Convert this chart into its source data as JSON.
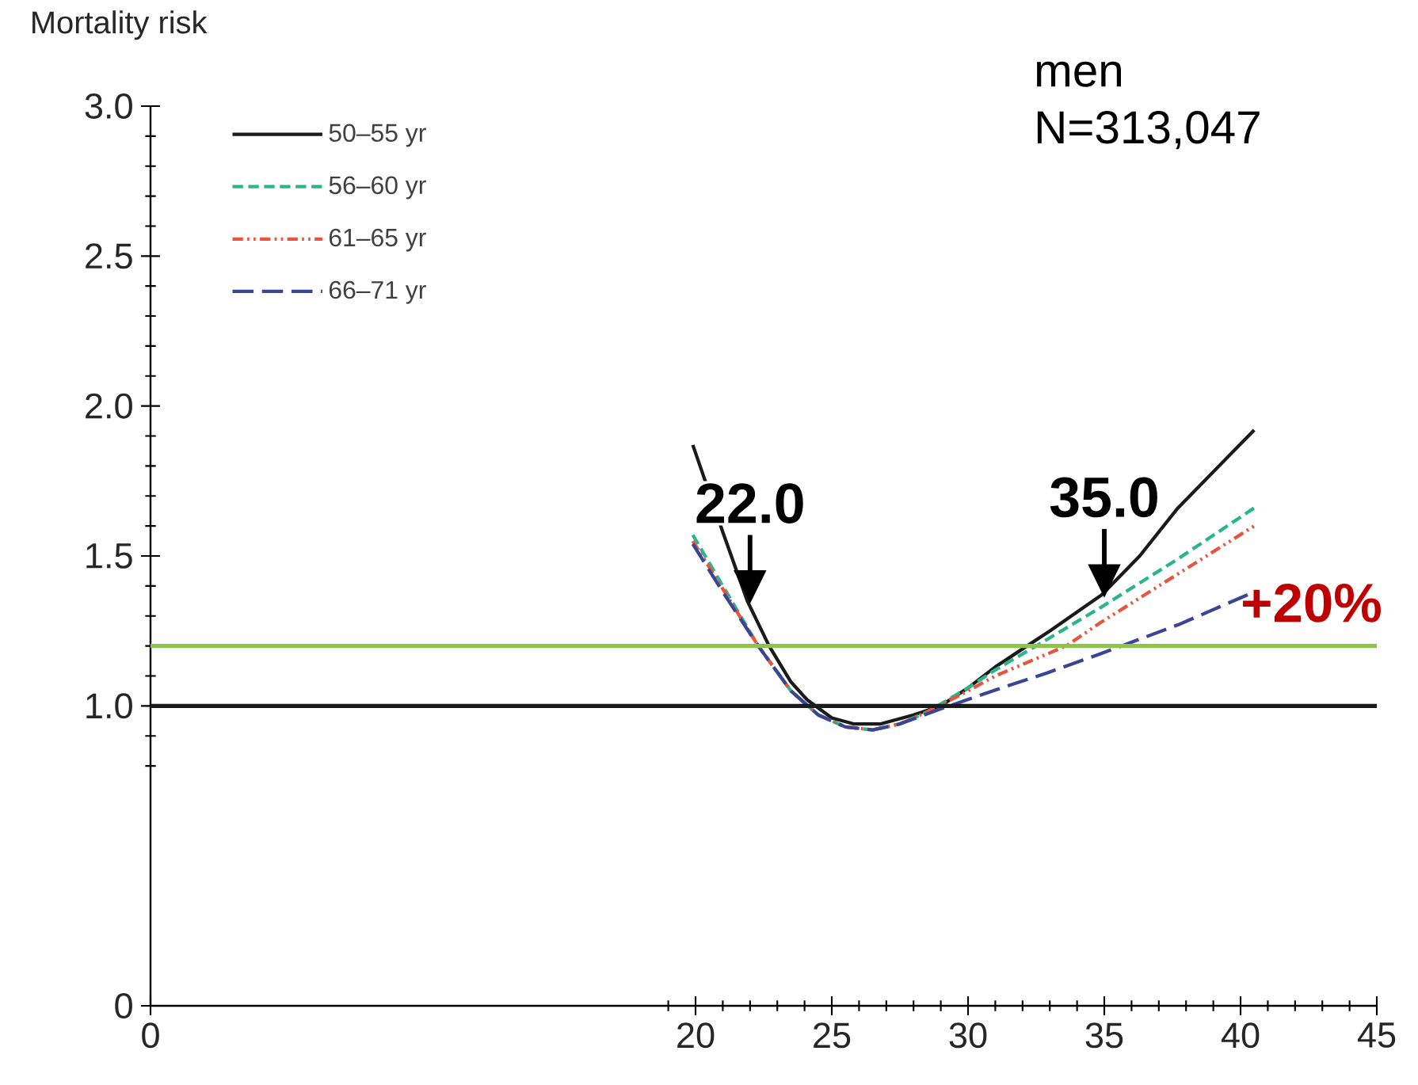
{
  "chart_data": {
    "type": "line",
    "ylabel": "Mortality risk",
    "xlim": [
      0,
      45
    ],
    "ylim": [
      0,
      3.0
    ],
    "xticks": [
      0,
      20,
      25,
      30,
      35,
      40,
      45
    ],
    "yticks": [
      0,
      {
        "value": 1.0,
        "label": "1.0"
      },
      {
        "value": 1.5,
        "label": "1.5"
      },
      {
        "value": 2.0,
        "label": "2.0"
      },
      {
        "value": 2.5,
        "label": "2.5"
      },
      {
        "value": 3.0,
        "label": "3.0"
      }
    ],
    "legend": "top left",
    "grid": false,
    "marker": "none",
    "series": [
      {
        "name": "50–55 yr",
        "color": "#1a1a1a",
        "line_style": "solid",
        "x": [
          19.9,
          21.0,
          21.9,
          22.7,
          23.5,
          24.1,
          25.0,
          25.8,
          26.8,
          28.0,
          29.0,
          30.0,
          31.0,
          32.0,
          33.0,
          34.9,
          36.3,
          37.7,
          39.1,
          40.5
        ],
        "values": [
          1.87,
          1.58,
          1.35,
          1.2,
          1.08,
          1.02,
          0.96,
          0.94,
          0.94,
          0.97,
          1.0,
          1.06,
          1.13,
          1.19,
          1.25,
          1.37,
          1.5,
          1.66,
          1.79,
          1.92
        ]
      },
      {
        "name": "56–60 yr",
        "color": "#2bb58f",
        "line_style": "dashed",
        "x": [
          19.9,
          21.0,
          22.3,
          23.5,
          24.5,
          25.5,
          26.5,
          27.5,
          28.5,
          30.0,
          31.0,
          32.5,
          34.9,
          37.7,
          40.5
        ],
        "values": [
          1.57,
          1.4,
          1.2,
          1.05,
          0.97,
          0.93,
          0.92,
          0.94,
          0.98,
          1.06,
          1.12,
          1.2,
          1.33,
          1.49,
          1.66
        ]
      },
      {
        "name": "61–65 yr",
        "color": "#e8553f",
        "line_style": "dashdotdotted",
        "x": [
          19.9,
          21.0,
          22.3,
          23.5,
          24.5,
          25.5,
          26.5,
          27.5,
          28.5,
          30.0,
          31.0,
          33.6,
          34.9,
          37.7,
          40.5
        ],
        "values": [
          1.55,
          1.39,
          1.2,
          1.05,
          0.97,
          0.93,
          0.92,
          0.94,
          0.98,
          1.05,
          1.1,
          1.2,
          1.28,
          1.44,
          1.6
        ]
      },
      {
        "name": "66–71 yr",
        "color": "#3a4596",
        "line_style": "longdashed",
        "x": [
          19.9,
          21.0,
          22.3,
          23.5,
          24.5,
          25.5,
          26.5,
          27.5,
          29.0,
          30.9,
          32.9,
          34.9,
          37.7,
          40.5
        ],
        "values": [
          1.54,
          1.38,
          1.2,
          1.05,
          0.97,
          0.93,
          0.92,
          0.94,
          0.99,
          1.05,
          1.11,
          1.175,
          1.27,
          1.38
        ]
      }
    ],
    "ref_lines": [
      {
        "axis": "y",
        "value": 1.0,
        "color": "#1a1a1a"
      },
      {
        "axis": "y",
        "value": 1.2,
        "color": "#8dc63f"
      }
    ],
    "annotations": [
      {
        "text": "22.0",
        "x": 22.0,
        "y": 1.34
      },
      {
        "text": "35.0",
        "x": 35.0,
        "y": 1.36
      },
      {
        "text": "+20%",
        "x": 42.6,
        "y": 1.2
      },
      "men",
      "N=313,047"
    ]
  }
}
